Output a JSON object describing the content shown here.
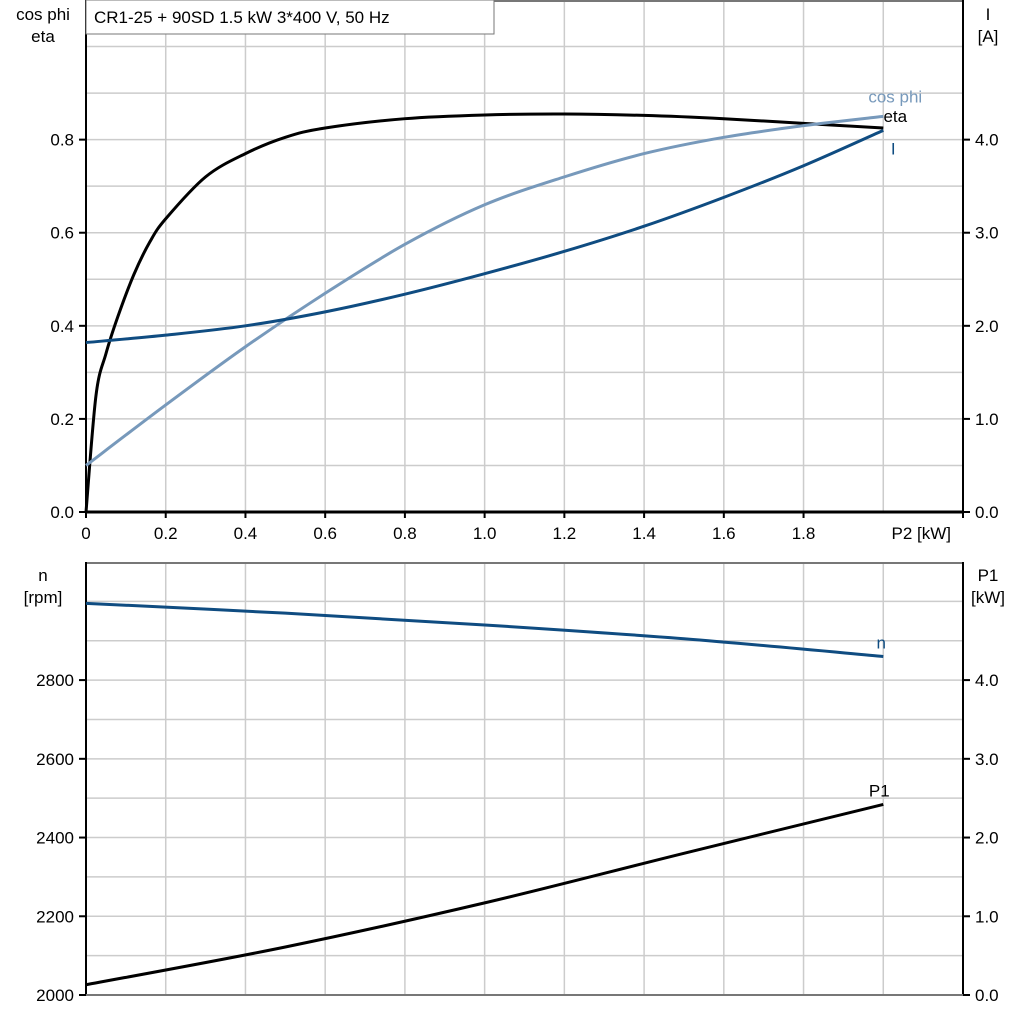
{
  "title": "CR1-25 + 90SD   1.5 kW   3*400 V, 50 Hz",
  "colors": {
    "eta": "#000000",
    "cos_phi": "#7799bb",
    "I": "#0f4c81",
    "n": "#0f4c81",
    "P1": "#000000",
    "grid": "#cccccc"
  },
  "chart_data": [
    {
      "type": "line",
      "xlabel": "P2 [kW]",
      "ylabel_left": [
        "cos phi",
        "eta"
      ],
      "ylabel_right": [
        "I",
        "[A]"
      ],
      "xlim": [
        0,
        2.2
      ],
      "ylim_left": [
        0,
        1.1
      ],
      "ylim_right": [
        0,
        5.5
      ],
      "xticks": [
        "0",
        "0.2",
        "0.4",
        "0.6",
        "0.8",
        "1.0",
        "1.2",
        "1.4",
        "1.6",
        "1.8"
      ],
      "yticks_left": [
        "0.0",
        "0.2",
        "0.4",
        "0.6",
        "0.8"
      ],
      "yticks_right": [
        "0.0",
        "1.0",
        "2.0",
        "3.0",
        "4.0"
      ],
      "grid": true,
      "series": [
        {
          "name": "eta",
          "axis": "left",
          "x": [
            0,
            0.025,
            0.05,
            0.08,
            0.12,
            0.16,
            0.2,
            0.3,
            0.4,
            0.5,
            0.6,
            0.8,
            1.0,
            1.2,
            1.4,
            1.6,
            1.8,
            2.0
          ],
          "y": [
            0,
            0.25,
            0.34,
            0.42,
            0.51,
            0.58,
            0.63,
            0.72,
            0.77,
            0.805,
            0.825,
            0.845,
            0.853,
            0.855,
            0.852,
            0.845,
            0.835,
            0.825
          ]
        },
        {
          "name": "cos phi",
          "axis": "left",
          "x": [
            0,
            0.2,
            0.4,
            0.6,
            0.8,
            1.0,
            1.2,
            1.4,
            1.6,
            1.8,
            2.0
          ],
          "y": [
            0.1,
            0.23,
            0.355,
            0.47,
            0.575,
            0.66,
            0.72,
            0.77,
            0.805,
            0.83,
            0.85
          ]
        },
        {
          "name": "I",
          "axis": "right",
          "x": [
            0,
            0.2,
            0.4,
            0.6,
            0.8,
            1.0,
            1.2,
            1.4,
            1.6,
            1.8,
            2.0
          ],
          "y": [
            1.82,
            1.9,
            2.0,
            2.15,
            2.34,
            2.56,
            2.8,
            3.07,
            3.38,
            3.72,
            4.1
          ]
        }
      ]
    },
    {
      "type": "line",
      "ylabel_left": [
        "n",
        "[rpm]"
      ],
      "ylabel_right": [
        "P1",
        "[kW]"
      ],
      "xlim": [
        0,
        2.2
      ],
      "ylim_left": [
        2000,
        3100
      ],
      "ylim_right": [
        0,
        5.5
      ],
      "yticks_left": [
        "2000",
        "2200",
        "2400",
        "2600",
        "2800"
      ],
      "yticks_right": [
        "0.0",
        "1.0",
        "2.0",
        "3.0",
        "4.0"
      ],
      "grid": true,
      "series": [
        {
          "name": "n",
          "axis": "left",
          "x": [
            0,
            0.5,
            1.0,
            1.5,
            2.0
          ],
          "y": [
            2995,
            2970,
            2940,
            2905,
            2860
          ]
        },
        {
          "name": "P1",
          "axis": "right",
          "x": [
            0,
            0.5,
            1.0,
            1.5,
            2.0
          ],
          "y": [
            0.13,
            0.61,
            1.17,
            1.8,
            2.42
          ]
        }
      ]
    }
  ]
}
